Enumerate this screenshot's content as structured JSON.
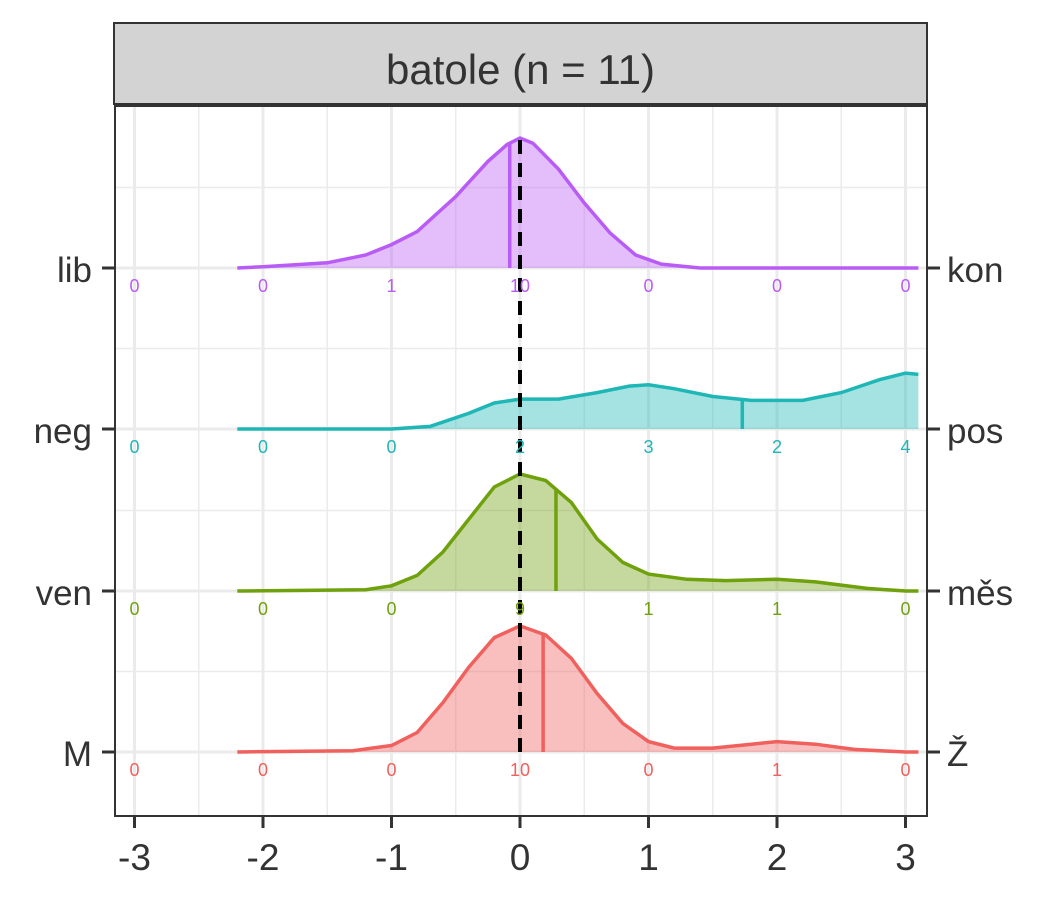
{
  "chart_data": {
    "type": "ridgeline",
    "title": "batole (n = 11)",
    "x_ticks": [
      "-3",
      "-2",
      "-1",
      "0",
      "1",
      "2",
      "3"
    ],
    "x_tick_values": [
      -3,
      -2,
      -1,
      0,
      1,
      2,
      3
    ],
    "xlim": [
      -3.15,
      3.15
    ],
    "reference_line_x": 0,
    "grid": true,
    "series": [
      {
        "left_label": "lib",
        "right_label": "kon",
        "color": "#B95CF6",
        "mean": -0.08,
        "counts": [
          "0",
          "0",
          "1",
          "10",
          "0",
          "0",
          "0"
        ],
        "density": [
          [
            -2.2,
            0.0
          ],
          [
            -2.0,
            0.01
          ],
          [
            -1.5,
            0.04
          ],
          [
            -1.2,
            0.1
          ],
          [
            -1.0,
            0.18
          ],
          [
            -0.8,
            0.28
          ],
          [
            -0.5,
            0.55
          ],
          [
            -0.25,
            0.82
          ],
          [
            -0.1,
            0.95
          ],
          [
            0.0,
            1.0
          ],
          [
            0.1,
            0.96
          ],
          [
            0.3,
            0.76
          ],
          [
            0.5,
            0.5
          ],
          [
            0.7,
            0.27
          ],
          [
            0.9,
            0.1
          ],
          [
            1.1,
            0.03
          ],
          [
            1.4,
            0.0
          ],
          [
            3.1,
            0.0
          ]
        ]
      },
      {
        "left_label": "neg",
        "right_label": "pos",
        "color": "#1FB6B6",
        "mean": 1.73,
        "counts": [
          "0",
          "0",
          "0",
          "2",
          "3",
          "2",
          "4"
        ],
        "density": [
          [
            -2.2,
            0.0
          ],
          [
            -1.0,
            0.0
          ],
          [
            -0.7,
            0.02
          ],
          [
            -0.4,
            0.12
          ],
          [
            -0.2,
            0.2
          ],
          [
            0.0,
            0.23
          ],
          [
            0.3,
            0.23
          ],
          [
            0.6,
            0.28
          ],
          [
            0.85,
            0.33
          ],
          [
            1.0,
            0.34
          ],
          [
            1.2,
            0.31
          ],
          [
            1.5,
            0.25
          ],
          [
            1.8,
            0.22
          ],
          [
            2.2,
            0.22
          ],
          [
            2.5,
            0.28
          ],
          [
            2.8,
            0.38
          ],
          [
            3.0,
            0.43
          ],
          [
            3.1,
            0.42
          ]
        ]
      },
      {
        "left_label": "ven",
        "right_label": "měs",
        "color": "#6FA10D",
        "mean": 0.28,
        "counts": [
          "0",
          "0",
          "0",
          "9",
          "1",
          "1",
          "0"
        ],
        "density": [
          [
            -2.2,
            0.0
          ],
          [
            -1.2,
            0.01
          ],
          [
            -1.0,
            0.04
          ],
          [
            -0.8,
            0.12
          ],
          [
            -0.6,
            0.3
          ],
          [
            -0.4,
            0.55
          ],
          [
            -0.2,
            0.8
          ],
          [
            0.0,
            0.9
          ],
          [
            0.2,
            0.85
          ],
          [
            0.4,
            0.68
          ],
          [
            0.6,
            0.4
          ],
          [
            0.8,
            0.22
          ],
          [
            1.0,
            0.13
          ],
          [
            1.3,
            0.09
          ],
          [
            1.6,
            0.08
          ],
          [
            2.0,
            0.09
          ],
          [
            2.3,
            0.07
          ],
          [
            2.7,
            0.02
          ],
          [
            3.0,
            0.0
          ],
          [
            3.1,
            0.0
          ]
        ]
      },
      {
        "left_label": "M",
        "right_label": "Ž",
        "color": "#F0605D",
        "mean": 0.18,
        "counts": [
          "0",
          "0",
          "0",
          "10",
          "0",
          "1",
          "0"
        ],
        "density": [
          [
            -2.2,
            0.0
          ],
          [
            -1.3,
            0.01
          ],
          [
            -1.0,
            0.05
          ],
          [
            -0.8,
            0.15
          ],
          [
            -0.6,
            0.38
          ],
          [
            -0.4,
            0.65
          ],
          [
            -0.2,
            0.88
          ],
          [
            0.0,
            0.97
          ],
          [
            0.2,
            0.9
          ],
          [
            0.4,
            0.72
          ],
          [
            0.6,
            0.45
          ],
          [
            0.8,
            0.22
          ],
          [
            1.0,
            0.08
          ],
          [
            1.2,
            0.03
          ],
          [
            1.5,
            0.03
          ],
          [
            1.8,
            0.06
          ],
          [
            2.0,
            0.08
          ],
          [
            2.3,
            0.06
          ],
          [
            2.6,
            0.02
          ],
          [
            3.0,
            0.0
          ],
          [
            3.1,
            0.0
          ]
        ]
      }
    ]
  }
}
